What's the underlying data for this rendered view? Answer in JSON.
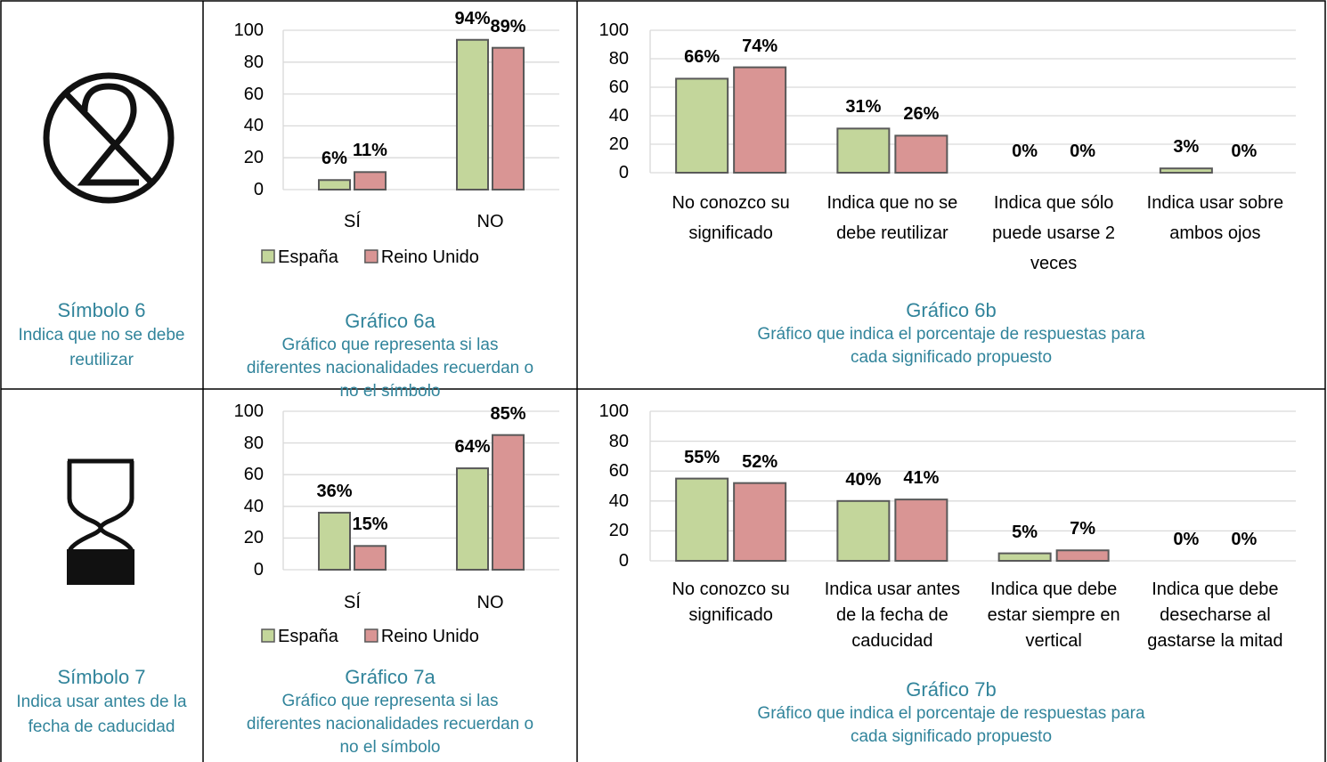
{
  "symbols": [
    {
      "title": "Símbolo 6",
      "description": "Indica que no se debe reutilizar"
    },
    {
      "title": "Símbolo 7",
      "description": "Indica usar antes de la fecha de caducidad"
    }
  ],
  "chart_data": [
    {
      "type": "bar",
      "title": "Gráfico 6a",
      "subtitle": "Gráfico que representa si las diferentes nacionalidades recuerdan o no el símbolo",
      "categories": [
        "SÍ",
        "NO"
      ],
      "series": [
        {
          "name": "España",
          "color": "#c3d69b",
          "values": [
            6,
            94
          ],
          "value_labels": [
            "6%",
            "94%"
          ]
        },
        {
          "name": "Reino Unido",
          "color": "#d99594",
          "values": [
            11,
            89
          ],
          "value_labels": [
            "11%",
            "89%"
          ]
        }
      ],
      "ylim": [
        0,
        100
      ],
      "yticks": [
        0,
        20,
        40,
        60,
        80,
        100
      ],
      "grid": true,
      "legend": "bottom"
    },
    {
      "type": "bar",
      "title": "Gráfico 6b",
      "subtitle": "Gráfico que indica el porcentaje de respuestas para cada significado propuesto",
      "categories": [
        "No conozco su significado",
        "Indica que no se debe reutilizar",
        "Indica que sólo puede usarse 2 veces",
        "Indica usar sobre ambos ojos"
      ],
      "series": [
        {
          "color": "#c3d69b",
          "values": [
            66,
            31,
            0,
            3
          ],
          "value_labels": [
            "66%",
            "31%",
            "0%",
            "3%"
          ]
        },
        {
          "color": "#d99594",
          "values": [
            74,
            26,
            0,
            0
          ],
          "value_labels": [
            "74%",
            "26%",
            "0%",
            "0%"
          ]
        }
      ],
      "ylim": [
        0,
        100
      ],
      "yticks": [
        0,
        20,
        40,
        60,
        80,
        100
      ],
      "grid": true
    },
    {
      "type": "bar",
      "title": "Gráfico 7a",
      "subtitle": "Gráfico que representa si las diferentes nacionalidades recuerdan o no el símbolo",
      "categories": [
        "SÍ",
        "NO"
      ],
      "series": [
        {
          "name": "España",
          "color": "#c3d69b",
          "values": [
            36,
            64
          ],
          "value_labels": [
            "36%",
            "64%"
          ]
        },
        {
          "name": "Reino Unido",
          "color": "#d99594",
          "values": [
            15,
            85
          ],
          "value_labels": [
            "15%",
            "85%"
          ]
        }
      ],
      "ylim": [
        0,
        100
      ],
      "yticks": [
        0,
        20,
        40,
        60,
        80,
        100
      ],
      "grid": true,
      "legend": "bottom"
    },
    {
      "type": "bar",
      "title": "Gráfico 7b",
      "subtitle": "Gráfico que indica el porcentaje de respuestas para cada significado propuesto",
      "categories": [
        "No conozco su significado",
        "Indica usar antes de la fecha de caducidad",
        "Indica que debe estar siempre en vertical",
        "Indica que debe desecharse al gastarse la mitad"
      ],
      "series": [
        {
          "color": "#c3d69b",
          "values": [
            55,
            40,
            5,
            0
          ],
          "value_labels": [
            "55%",
            "40%",
            "5%",
            "0%"
          ]
        },
        {
          "color": "#d99594",
          "values": [
            52,
            41,
            7,
            0
          ],
          "value_labels": [
            "52%",
            "41%",
            "7%",
            "0%"
          ]
        }
      ],
      "ylim": [
        0,
        100
      ],
      "yticks": [
        0,
        20,
        40,
        60,
        80,
        100
      ],
      "grid": true
    }
  ]
}
